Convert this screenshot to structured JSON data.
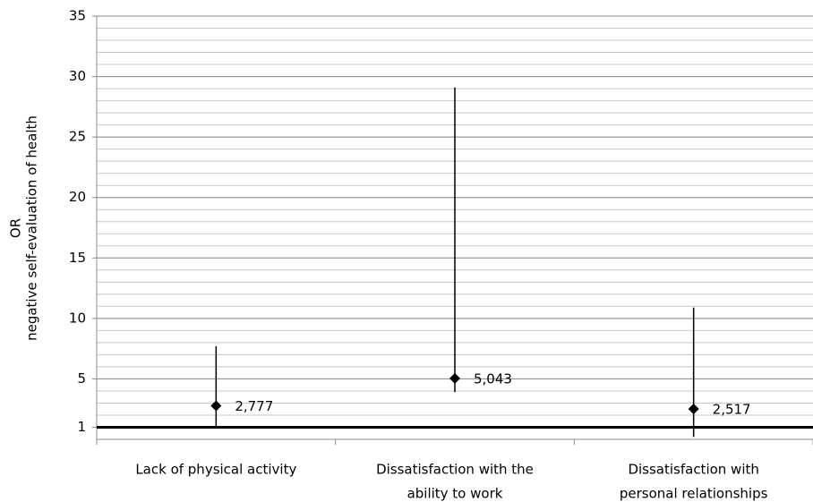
{
  "chart_data": {
    "type": "errorbar",
    "y_label": [
      "OR",
      "negative self-evaluation of health"
    ],
    "categories": [
      [
        "Lack of physical activity"
      ],
      [
        "Dissatisfaction with the",
        "ability to work"
      ],
      [
        "Dissatisfaction with",
        "personal relationships"
      ]
    ],
    "values": [
      2.777,
      5.043,
      2.517
    ],
    "value_labels": [
      "2,777",
      "5,043",
      "2,517"
    ],
    "lower": [
      1.0,
      3.9,
      0.2
    ],
    "upper": [
      7.7,
      29.1,
      10.9
    ],
    "color": "#000000",
    "ylim": [
      0,
      35
    ],
    "yticks": [
      1,
      5,
      10,
      15,
      20,
      25,
      30,
      35
    ],
    "grid": true,
    "minor_grid_step": 1,
    "reference_line": 1
  }
}
